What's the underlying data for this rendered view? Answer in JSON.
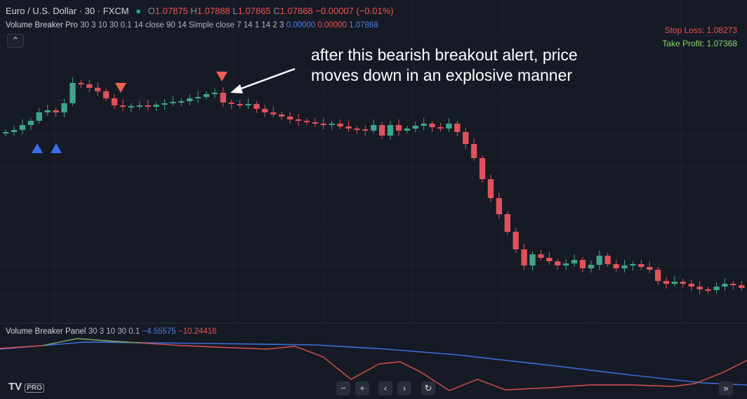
{
  "header": {
    "symbol": "Euro / U.S. Dollar · 30 · FXCM",
    "ohlc": [
      {
        "label": "O",
        "value": "1.07875"
      },
      {
        "label": "H",
        "value": "1.07888"
      },
      {
        "label": "L",
        "value": "1.07865"
      },
      {
        "label": "C",
        "value": "1.07868"
      }
    ],
    "change": "−0.00007 (−0.01%)"
  },
  "indicator": {
    "name": "Volume Breaker Pro",
    "params": "30 3 10 30 0.1 14 close 90 14 Simple close 7 14 1 14 2 3",
    "values": [
      "0.00000",
      "0.00000",
      "1.07868"
    ]
  },
  "levels": {
    "stop_loss": "Stop Loss: 1.08273",
    "take_profit": "Take Profit: 1.07368"
  },
  "annotation": [
    "after this bearish breakout alert, price",
    "moves down in an explosive manner"
  ],
  "panel": {
    "name": "Volume Breaker Panel",
    "params": "30 3 10 30 0.1",
    "values": [
      "−4.55575",
      "−10.24416"
    ]
  },
  "logo": "PRO"
}
